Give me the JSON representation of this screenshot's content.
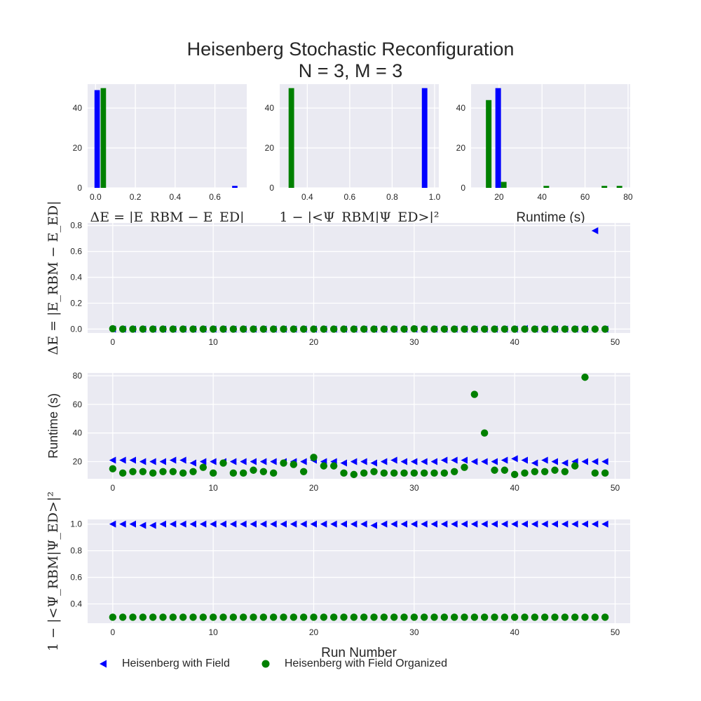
{
  "title_line1": "Heisenberg Stochastic Reconfiguration",
  "title_line2": "N = 3, M = 3",
  "colors": {
    "blue": "#0000ff",
    "green": "#008000",
    "panel_bg": "#eaeaf2",
    "grid": "#ffffff",
    "text": "#262626"
  },
  "legend": {
    "series1_label": "Heisenberg with Field",
    "series2_label": "Heisenberg with Field Organized"
  },
  "chart_data": [
    {
      "type": "bar",
      "panel": "hist_energy",
      "xlabel": "ΔE = |E_RBM − E_ED|",
      "xlim": [
        -0.04,
        0.76
      ],
      "ylim": [
        0,
        52
      ],
      "xticks": [
        0.0,
        0.2,
        0.4,
        0.6
      ],
      "yticks": [
        0,
        20,
        40
      ],
      "bar_width": 0.027,
      "series": [
        {
          "name": "Heisenberg with Field",
          "color": "blue",
          "bars": [
            [
              0.008,
              49
            ],
            [
              0.7,
              1
            ]
          ]
        },
        {
          "name": "Heisenberg with Field Organized",
          "color": "green",
          "bars": [
            [
              0.039,
              50
            ]
          ]
        }
      ]
    },
    {
      "type": "bar",
      "panel": "hist_fidelity",
      "xlabel": "1 − |<Ψ_RBM|Ψ_ED>|²",
      "xlim": [
        0.27,
        1.02
      ],
      "ylim": [
        0,
        52
      ],
      "xticks": [
        0.4,
        0.6,
        0.8,
        1.0
      ],
      "yticks": [
        0,
        20,
        40
      ],
      "bar_width": 0.026,
      "series": [
        {
          "name": "Heisenberg with Field",
          "color": "blue",
          "bars": [
            [
              0.953,
              50
            ]
          ]
        },
        {
          "name": "Heisenberg with Field Organized",
          "color": "green",
          "bars": [
            [
              0.325,
              50
            ]
          ]
        }
      ]
    },
    {
      "type": "bar",
      "panel": "hist_runtime",
      "xlabel": "Runtime (s)",
      "xlim": [
        7,
        81
      ],
      "ylim": [
        0,
        52
      ],
      "xticks": [
        20,
        40,
        60,
        80
      ],
      "yticks": [
        0,
        20,
        40
      ],
      "bar_width": 2.6,
      "series": [
        {
          "name": "Heisenberg with Field",
          "color": "blue",
          "bars": [
            [
              19.6,
              50
            ]
          ]
        },
        {
          "name": "Heisenberg with Field Organized",
          "color": "green",
          "bars": [
            [
              15.2,
              44
            ],
            [
              22.2,
              3
            ],
            [
              42.0,
              1
            ],
            [
              69.0,
              1
            ],
            [
              76.0,
              1
            ]
          ]
        }
      ]
    },
    {
      "type": "scatter",
      "panel": "scatter_energy",
      "ylabel": "ΔE = |E_RBM − E_ED|",
      "xlim": [
        -2.5,
        51.5
      ],
      "ylim": [
        -0.03,
        0.82
      ],
      "xticks": [
        0,
        10,
        20,
        30,
        40,
        50
      ],
      "yticks": [
        0.0,
        0.2,
        0.4,
        0.6,
        0.8
      ],
      "series": [
        {
          "name": "Heisenberg with Field",
          "marker": "triangle-left",
          "color": "blue",
          "x": [
            0,
            1,
            2,
            3,
            4,
            5,
            6,
            7,
            8,
            9,
            10,
            11,
            12,
            13,
            14,
            15,
            16,
            17,
            18,
            19,
            20,
            21,
            22,
            23,
            24,
            25,
            26,
            27,
            28,
            29,
            30,
            31,
            32,
            33,
            34,
            35,
            36,
            37,
            38,
            39,
            40,
            41,
            42,
            43,
            44,
            45,
            46,
            47,
            48,
            49
          ],
          "y": [
            0,
            0,
            0,
            0,
            0,
            0,
            0,
            0,
            0,
            0,
            0,
            0,
            0,
            0,
            0,
            0,
            0,
            0,
            0,
            0,
            0,
            0,
            0,
            0,
            0,
            0,
            0,
            0,
            0,
            0,
            0,
            0,
            0,
            0,
            0,
            0,
            0,
            0,
            0,
            0,
            0,
            0.004,
            0,
            0,
            0,
            0,
            0,
            0,
            0.76,
            0
          ]
        },
        {
          "name": "Heisenberg with Field Organized",
          "marker": "circle",
          "color": "green",
          "x": [
            0,
            1,
            2,
            3,
            4,
            5,
            6,
            7,
            8,
            9,
            10,
            11,
            12,
            13,
            14,
            15,
            16,
            17,
            18,
            19,
            20,
            21,
            22,
            23,
            24,
            25,
            26,
            27,
            28,
            29,
            30,
            31,
            32,
            33,
            34,
            35,
            36,
            37,
            38,
            39,
            40,
            41,
            42,
            43,
            44,
            45,
            46,
            47,
            48,
            49
          ],
          "y": [
            0.003,
            0,
            0,
            0,
            0,
            0,
            0,
            0,
            0,
            0,
            0,
            0,
            0,
            0,
            0,
            0,
            0,
            0,
            0,
            0,
            0,
            0,
            0,
            0,
            0,
            0,
            0,
            0,
            0,
            0,
            0.002,
            0,
            0,
            0,
            0,
            0,
            0,
            0,
            0,
            0,
            0,
            0,
            0,
            0,
            0,
            0,
            0,
            0,
            0,
            0
          ]
        }
      ]
    },
    {
      "type": "scatter",
      "panel": "scatter_runtime",
      "ylabel": "Runtime (s)",
      "xlim": [
        -2.5,
        51.5
      ],
      "ylim": [
        8,
        82
      ],
      "xticks": [
        0,
        10,
        20,
        30,
        40,
        50
      ],
      "yticks": [
        20,
        40,
        60,
        80
      ],
      "series": [
        {
          "name": "Heisenberg with Field",
          "marker": "triangle-left",
          "color": "blue",
          "x": [
            0,
            1,
            2,
            3,
            4,
            5,
            6,
            7,
            8,
            9,
            10,
            11,
            12,
            13,
            14,
            15,
            16,
            17,
            18,
            19,
            20,
            21,
            22,
            23,
            24,
            25,
            26,
            27,
            28,
            29,
            30,
            31,
            32,
            33,
            34,
            35,
            36,
            37,
            38,
            39,
            40,
            41,
            42,
            43,
            44,
            45,
            46,
            47,
            48,
            49
          ],
          "y": [
            21,
            21,
            21,
            20,
            20,
            20,
            21,
            21,
            19,
            20,
            20,
            20,
            20,
            20,
            20,
            20,
            20,
            20,
            20,
            20,
            21,
            20,
            20,
            19,
            20,
            20,
            19,
            20,
            21,
            20,
            20,
            20,
            20,
            21,
            21,
            21,
            20,
            20,
            20,
            21,
            22,
            21,
            19,
            21,
            20,
            19,
            20,
            20,
            20,
            20
          ]
        },
        {
          "name": "Heisenberg with Field Organized",
          "marker": "circle",
          "color": "green",
          "x": [
            0,
            1,
            2,
            3,
            4,
            5,
            6,
            7,
            8,
            9,
            10,
            11,
            12,
            13,
            14,
            15,
            16,
            17,
            18,
            19,
            20,
            21,
            22,
            23,
            24,
            25,
            26,
            27,
            28,
            29,
            30,
            31,
            32,
            33,
            34,
            35,
            36,
            37,
            38,
            39,
            40,
            41,
            42,
            43,
            44,
            45,
            46,
            47,
            48,
            49
          ],
          "y": [
            15,
            12,
            13,
            13,
            12,
            13,
            13,
            12,
            13,
            16,
            12,
            19,
            12,
            12,
            14,
            13,
            12,
            19,
            18,
            13,
            23,
            17,
            17,
            12,
            11,
            12,
            13,
            12,
            12,
            12,
            12,
            12,
            12,
            12,
            13,
            16,
            67,
            40,
            14,
            14,
            11,
            12,
            13,
            13,
            14,
            13,
            17,
            79,
            12,
            12
          ]
        }
      ]
    },
    {
      "type": "scatter",
      "panel": "scatter_fidelity",
      "ylabel": "1 − |<Ψ_RBM|Ψ_ED>|²",
      "xlabel": "Run Number",
      "xlim": [
        -2.5,
        51.5
      ],
      "ylim": [
        0.255,
        1.035
      ],
      "xticks": [
        0,
        10,
        20,
        30,
        40,
        50
      ],
      "yticks": [
        0.4,
        0.6,
        0.8,
        1.0
      ],
      "series": [
        {
          "name": "Heisenberg with Field",
          "marker": "triangle-left",
          "color": "blue",
          "x": [
            0,
            1,
            2,
            3,
            4,
            5,
            6,
            7,
            8,
            9,
            10,
            11,
            12,
            13,
            14,
            15,
            16,
            17,
            18,
            19,
            20,
            21,
            22,
            23,
            24,
            25,
            26,
            27,
            28,
            29,
            30,
            31,
            32,
            33,
            34,
            35,
            36,
            37,
            38,
            39,
            40,
            41,
            42,
            43,
            44,
            45,
            46,
            47,
            48,
            49
          ],
          "y": [
            1.0,
            1.0,
            1.0,
            0.99,
            0.99,
            1.0,
            1.0,
            1.0,
            1.0,
            1.0,
            1.0,
            1.0,
            1.0,
            1.0,
            1.0,
            1.0,
            1.0,
            1.0,
            1.0,
            1.0,
            1.0,
            1.0,
            1.0,
            1.0,
            1.0,
            1.0,
            0.99,
            1.0,
            1.0,
            1.0,
            1.0,
            1.0,
            1.0,
            1.0,
            1.0,
            1.0,
            1.0,
            1.0,
            1.0,
            1.0,
            1.0,
            1.0,
            1.0,
            1.0,
            1.0,
            1.0,
            1.0,
            1.0,
            1.0,
            1.0
          ]
        },
        {
          "name": "Heisenberg with Field Organized",
          "marker": "circle",
          "color": "green",
          "x": [
            0,
            1,
            2,
            3,
            4,
            5,
            6,
            7,
            8,
            9,
            10,
            11,
            12,
            13,
            14,
            15,
            16,
            17,
            18,
            19,
            20,
            21,
            22,
            23,
            24,
            25,
            26,
            27,
            28,
            29,
            30,
            31,
            32,
            33,
            34,
            35,
            36,
            37,
            38,
            39,
            40,
            41,
            42,
            43,
            44,
            45,
            46,
            47,
            48,
            49
          ],
          "y": [
            0.3,
            0.3,
            0.3,
            0.3,
            0.3,
            0.3,
            0.3,
            0.3,
            0.3,
            0.3,
            0.3,
            0.3,
            0.3,
            0.3,
            0.3,
            0.3,
            0.3,
            0.3,
            0.3,
            0.3,
            0.3,
            0.3,
            0.3,
            0.3,
            0.3,
            0.3,
            0.3,
            0.3,
            0.3,
            0.3,
            0.3,
            0.3,
            0.3,
            0.3,
            0.3,
            0.3,
            0.3,
            0.3,
            0.3,
            0.3,
            0.3,
            0.3,
            0.3,
            0.3,
            0.3,
            0.3,
            0.3,
            0.3,
            0.3,
            0.3
          ]
        }
      ]
    }
  ]
}
